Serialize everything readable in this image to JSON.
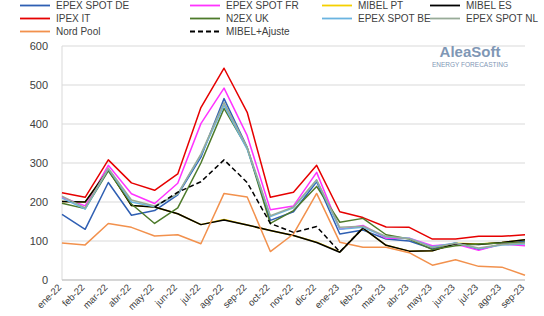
{
  "chart_data": {
    "type": "line",
    "annotations": [
      "AleaSoft",
      "ENERGY FORECASTING"
    ],
    "categories": [
      "ene-22",
      "feb-22",
      "mar-22",
      "abr-22",
      "may-22",
      "jun-22",
      "jul-22",
      "ago-22",
      "sep-22",
      "oct-22",
      "nov-22",
      "dic-22",
      "ene-23",
      "feb-23",
      "mar-23",
      "abr-23",
      "may-23",
      "jun-23",
      "jul-23",
      "ago-23",
      "sep-23"
    ],
    "ylim": [
      0,
      600
    ],
    "yticks": [
      0,
      100,
      200,
      300,
      400,
      500,
      600
    ],
    "grid": true,
    "legend": "top",
    "series": [
      {
        "name": "EPEX SPOT DE",
        "color": "#2f5fb3",
        "line_style": "solid",
        "values": [
          168,
          130,
          250,
          166,
          178,
          218,
          315,
          465,
          340,
          153,
          175,
          252,
          118,
          128,
          105,
          100,
          80,
          95,
          78,
          92,
          100
        ]
      },
      {
        "name": "EPEX SPOT FR",
        "color": "#ff33ff",
        "line_style": "solid",
        "values": [
          212,
          190,
          294,
          221,
          196,
          248,
          401,
          492,
          370,
          180,
          190,
          276,
          130,
          140,
          107,
          107,
          88,
          92,
          76,
          92,
          88
        ]
      },
      {
        "name": "MIBEL PT",
        "color": "#f5d000",
        "line_style": "solid",
        "values": [
          201,
          200,
          283,
          191,
          187,
          170,
          142,
          155,
          141,
          127,
          114,
          97,
          72,
          133,
          89,
          74,
          75,
          94,
          92,
          96,
          103
        ]
      },
      {
        "name": "MIBEL ES",
        "color": "#000000",
        "line_style": "solid",
        "values": [
          201,
          200,
          283,
          191,
          187,
          170,
          142,
          154,
          141,
          127,
          114,
          96,
          71,
          133,
          89,
          74,
          75,
          93,
          91,
          96,
          103
        ]
      },
      {
        "name": "IPEX IT",
        "color": "#e60000",
        "line_style": "solid",
        "values": [
          224,
          212,
          308,
          249,
          230,
          272,
          442,
          543,
          430,
          212,
          225,
          294,
          175,
          160,
          136,
          135,
          105,
          105,
          112,
          112,
          116
        ]
      },
      {
        "name": "N2EX UK",
        "color": "#4d7a2a",
        "line_style": "solid",
        "values": [
          197,
          183,
          280,
          195,
          145,
          185,
          300,
          440,
          338,
          145,
          178,
          240,
          148,
          158,
          116,
          105,
          78,
          88,
          92,
          95,
          96
        ]
      },
      {
        "name": "EPEX SPOT BE",
        "color": "#6ab4e0",
        "line_style": "solid",
        "values": [
          210,
          182,
          285,
          200,
          188,
          220,
          320,
          448,
          335,
          163,
          185,
          255,
          130,
          135,
          110,
          107,
          85,
          95,
          80,
          90,
          92
        ]
      },
      {
        "name": "EPEX SPOT NL",
        "color": "#98ab98",
        "line_style": "solid",
        "values": [
          215,
          185,
          287,
          205,
          190,
          221,
          323,
          455,
          340,
          165,
          187,
          257,
          135,
          138,
          112,
          106,
          83,
          94,
          82,
          91,
          95
        ]
      },
      {
        "name": "Nord Pool",
        "color": "#f2914d",
        "line_style": "solid",
        "values": [
          95,
          90,
          145,
          135,
          113,
          116,
          93,
          222,
          213,
          73,
          118,
          222,
          97,
          84,
          84,
          70,
          38,
          52,
          35,
          33,
          12
        ]
      },
      {
        "name": "MIBEL+Ajuste",
        "color": "#000000",
        "line_style": "dashed",
        "values": [
          null,
          null,
          null,
          null,
          187,
          225,
          252,
          308,
          250,
          145,
          122,
          137,
          72,
          133,
          null,
          null,
          null,
          null,
          null,
          null,
          null
        ]
      }
    ]
  }
}
